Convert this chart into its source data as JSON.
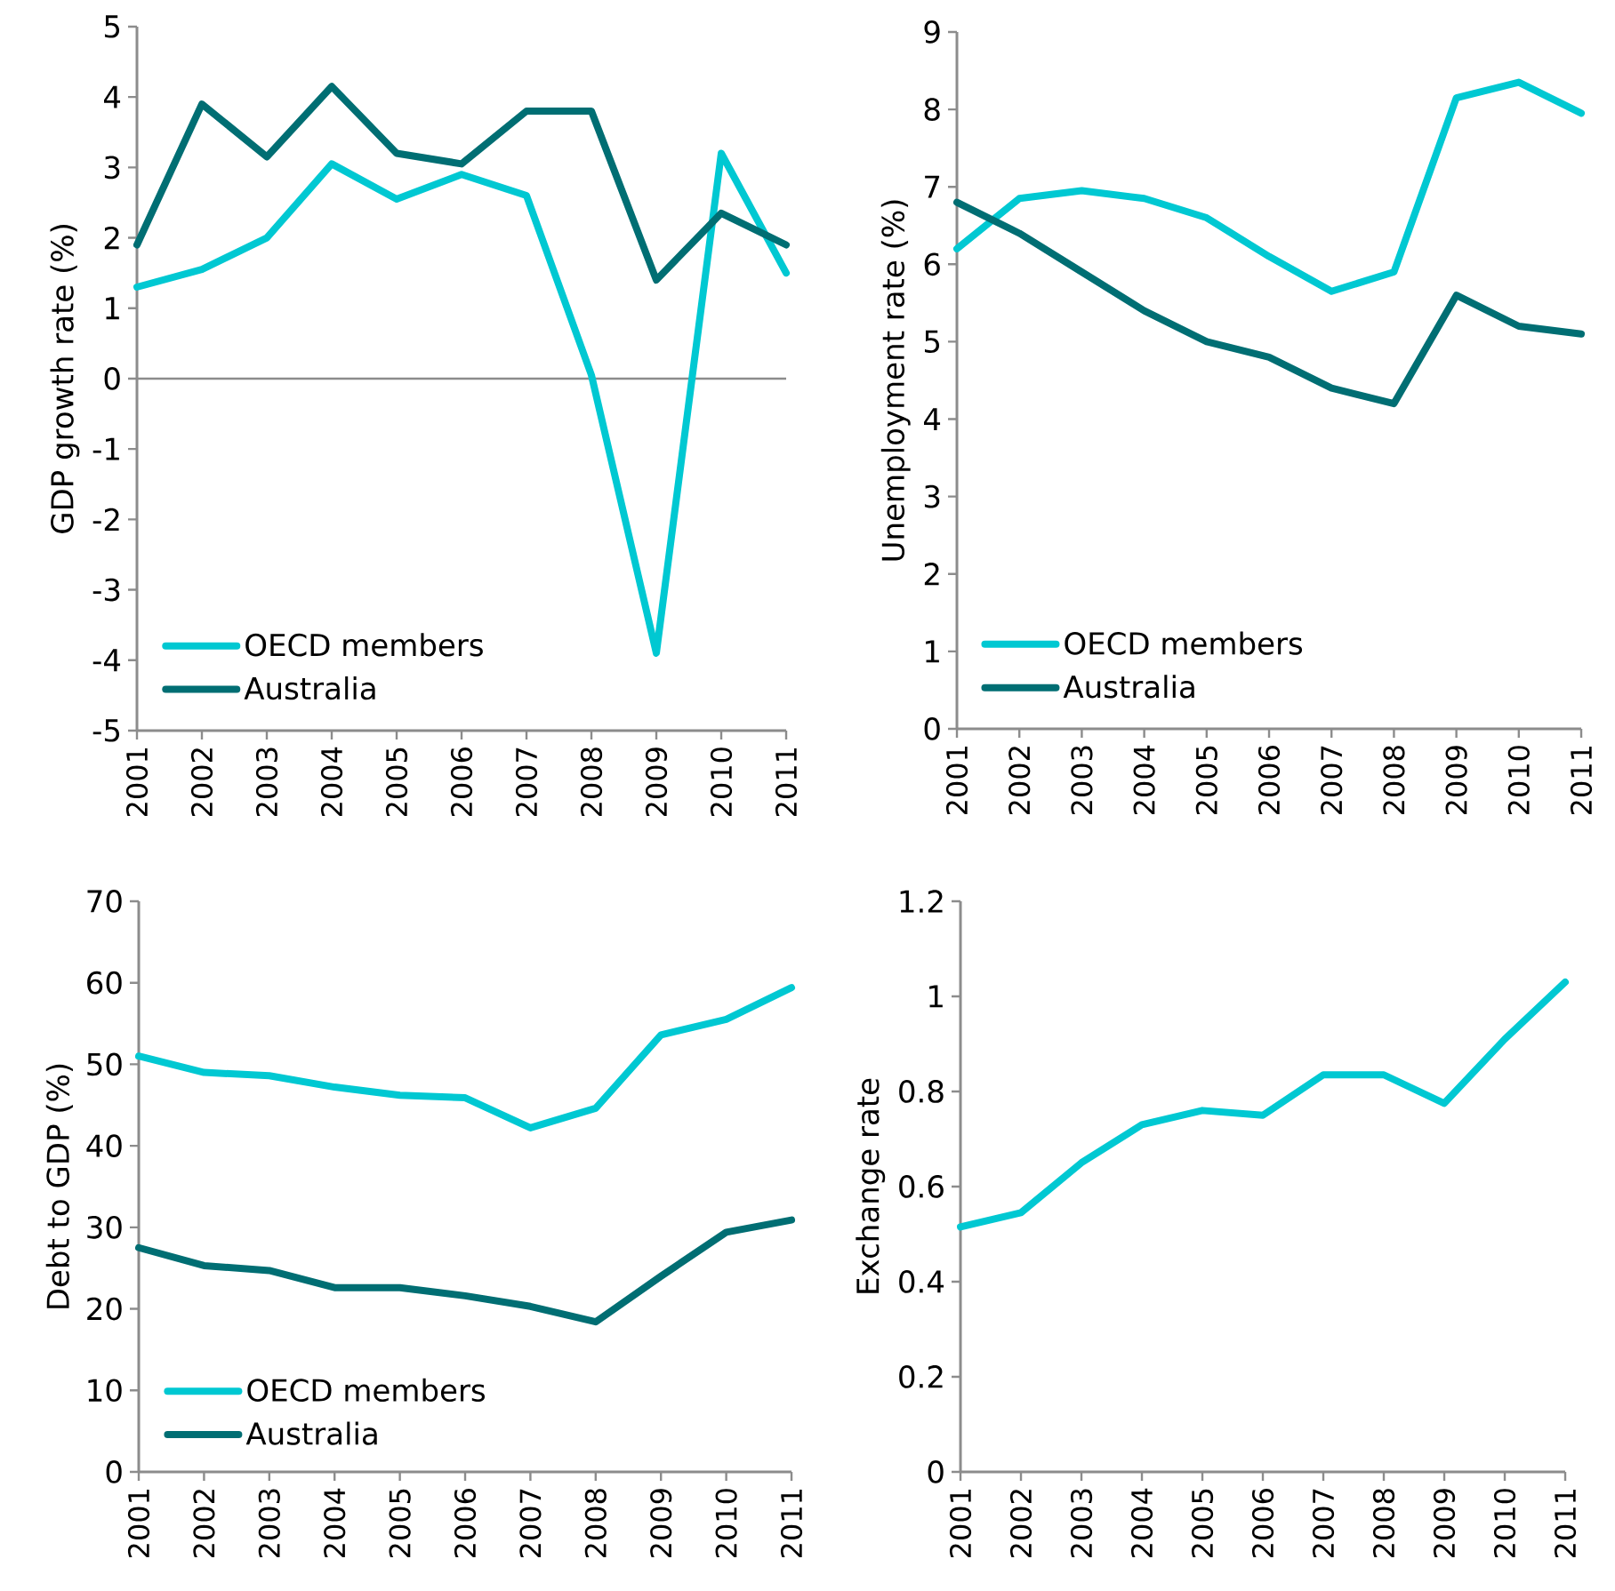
{
  "chart_data": [
    {
      "type": "line",
      "ylabel": "GDP growth rate  (%)",
      "categories": [
        "2001",
        "2002",
        "2003",
        "2004",
        "2005",
        "2006",
        "2007",
        "2008",
        "2009",
        "2010",
        "2011"
      ],
      "ylim": [
        -5,
        5
      ],
      "yticks": [
        -5,
        -4,
        -3,
        -2,
        -1,
        0,
        1,
        2,
        3,
        4,
        5
      ],
      "legend": "bottom left",
      "ref_lines": [
        {
          "axis": "y",
          "value": 0,
          "color": "#8c8c8c"
        }
      ],
      "series": [
        {
          "name": "OECD members",
          "color": "#00c8d2",
          "values": [
            1.3,
            1.55,
            2.0,
            3.05,
            2.55,
            2.9,
            2.6,
            0.05,
            -3.9,
            3.2,
            1.5
          ]
        },
        {
          "name": "Australia",
          "color": "#006e73",
          "values": [
            1.9,
            3.9,
            3.15,
            4.15,
            3.2,
            3.05,
            3.8,
            3.8,
            1.4,
            2.35,
            1.9
          ]
        }
      ]
    },
    {
      "type": "line",
      "ylabel": "Unemployment rate (%)",
      "categories": [
        "2001",
        "2002",
        "2003",
        "2004",
        "2005",
        "2006",
        "2007",
        "2008",
        "2009",
        "2010",
        "2011"
      ],
      "ylim": [
        0,
        9
      ],
      "yticks": [
        0,
        1,
        2,
        3,
        4,
        5,
        6,
        7,
        8,
        9
      ],
      "legend": "bottom left",
      "series": [
        {
          "name": "OECD members",
          "color": "#00c8d2",
          "values": [
            6.2,
            6.85,
            6.95,
            6.85,
            6.6,
            6.1,
            5.65,
            5.9,
            8.15,
            8.35,
            7.95
          ]
        },
        {
          "name": "Australia",
          "color": "#006e73",
          "values": [
            6.8,
            6.4,
            5.9,
            5.4,
            5.0,
            4.8,
            4.4,
            4.2,
            5.6,
            5.2,
            5.1
          ]
        }
      ]
    },
    {
      "type": "line",
      "ylabel": "Debt to GDP (%)",
      "categories": [
        "2001",
        "2002",
        "2003",
        "2004",
        "2005",
        "2006",
        "2007",
        "2008",
        "2009",
        "2010",
        "2011"
      ],
      "ylim": [
        0,
        70
      ],
      "yticks": [
        0,
        10,
        20,
        30,
        40,
        50,
        60,
        70
      ],
      "legend": "bottom left",
      "series": [
        {
          "name": "OECD members",
          "color": "#00c8d2",
          "values": [
            51,
            49,
            48.6,
            47.2,
            46.2,
            45.9,
            42.2,
            44.6,
            53.6,
            55.5,
            59.4
          ]
        },
        {
          "name": "Australia",
          "color": "#006e73",
          "values": [
            27.5,
            25.3,
            24.7,
            22.6,
            22.6,
            21.6,
            20.3,
            18.4,
            24.0,
            29.4,
            30.9
          ]
        }
      ]
    },
    {
      "type": "line",
      "ylabel": "Exchange rate",
      "categories": [
        "2001",
        "2002",
        "2003",
        "2004",
        "2005",
        "2006",
        "2007",
        "2008",
        "2009",
        "2010",
        "2011"
      ],
      "ylim": [
        0,
        1.2
      ],
      "yticks": [
        0,
        0.2,
        0.4,
        0.6,
        0.8,
        1,
        1.2
      ],
      "series": [
        {
          "color": "#00c8d2",
          "values": [
            0.515,
            0.545,
            0.65,
            0.73,
            0.76,
            0.75,
            0.835,
            0.835,
            0.775,
            0.91,
            1.03
          ]
        }
      ]
    }
  ]
}
